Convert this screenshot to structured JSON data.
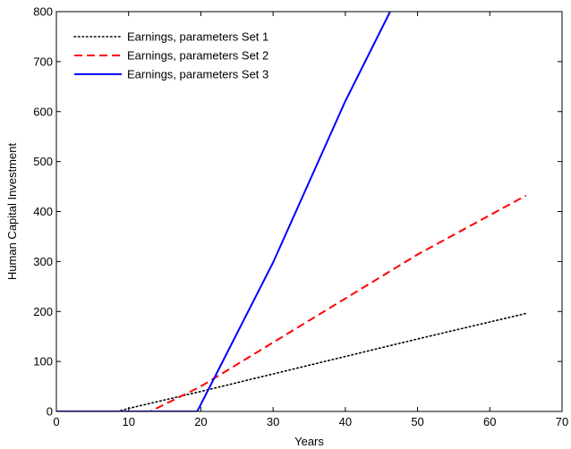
{
  "chart_data": {
    "type": "line",
    "xlabel": "Years",
    "ylabel": "Human Capital Investment",
    "xlim": [
      0,
      70
    ],
    "ylim": [
      0,
      800
    ],
    "xticks": [
      0,
      10,
      20,
      30,
      40,
      50,
      60,
      70
    ],
    "yticks": [
      0,
      100,
      200,
      300,
      400,
      500,
      600,
      700,
      800
    ],
    "grid": false,
    "legend_position": "top-left",
    "series": [
      {
        "name": "Earnings, parameters Set 1",
        "color": "#000000",
        "style": "dotted",
        "x": [
          0,
          8.5,
          10,
          20,
          30,
          40,
          50,
          65
        ],
        "y": [
          0,
          0,
          6,
          40,
          75,
          110,
          145,
          196
        ]
      },
      {
        "name": "Earnings, parameters Set 2",
        "color": "#ff0000",
        "style": "dashed",
        "x": [
          0,
          13,
          20,
          30,
          40,
          50,
          65
        ],
        "y": [
          0,
          0,
          50,
          138,
          226,
          314,
          432
        ]
      },
      {
        "name": "Earnings, parameters Set 3",
        "color": "#0000ff",
        "style": "solid",
        "x": [
          0,
          19.5,
          30,
          40,
          46.2
        ],
        "y": [
          0,
          0,
          298,
          621,
          800
        ]
      }
    ]
  }
}
